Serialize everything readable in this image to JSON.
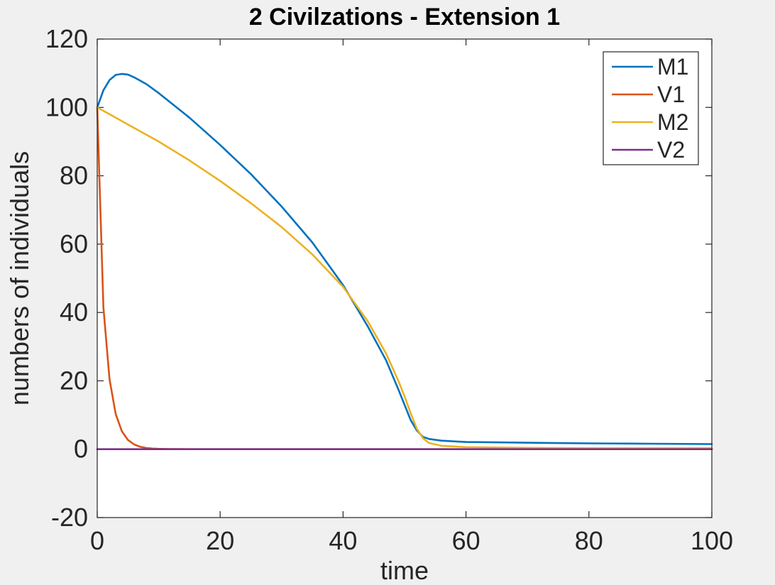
{
  "chart_data": {
    "type": "line",
    "title": "2 Civilzations - Extension 1",
    "xlabel": "time",
    "ylabel": "numbers of individuals",
    "xlim": [
      0,
      100
    ],
    "ylim": [
      -20,
      120
    ],
    "xticks": [
      0,
      20,
      40,
      60,
      80,
      100
    ],
    "yticks": [
      -20,
      0,
      20,
      40,
      60,
      80,
      100,
      120
    ],
    "grid": false,
    "legend_position": "top-right",
    "series": [
      {
        "name": "M1",
        "color": "#0072bd",
        "x": [
          0,
          1,
          2,
          3,
          4,
          5,
          6,
          8,
          10,
          15,
          20,
          25,
          30,
          35,
          40,
          44,
          47,
          49,
          50,
          51,
          52,
          53,
          54,
          56,
          60,
          70,
          80,
          90,
          100
        ],
        "y": [
          100,
          105,
          108,
          109.5,
          109.8,
          109.6,
          108.8,
          106.8,
          104.2,
          97,
          89,
          80.5,
          71,
          60.5,
          48,
          36,
          26,
          17.5,
          13,
          8.5,
          5.5,
          3.6,
          3,
          2.5,
          2.1,
          1.9,
          1.7,
          1.6,
          1.5
        ]
      },
      {
        "name": "V1",
        "color": "#d95319",
        "x": [
          0,
          1,
          2,
          3,
          4,
          5,
          6,
          7,
          8,
          9,
          10,
          12,
          15,
          20,
          30,
          50,
          100
        ],
        "y": [
          100,
          41.5,
          20.5,
          10.3,
          5.3,
          2.7,
          1.4,
          0.7,
          0.35,
          0.2,
          0.1,
          0.05,
          0,
          0,
          0,
          0,
          0
        ]
      },
      {
        "name": "M2",
        "color": "#edb120",
        "x": [
          0,
          5,
          10,
          15,
          20,
          25,
          30,
          35,
          40,
          44,
          47,
          49,
          50,
          51,
          52,
          53,
          54,
          56,
          60,
          70,
          80,
          90,
          100
        ],
        "y": [
          100,
          95,
          90,
          84.5,
          78.5,
          72,
          65,
          57,
          47.5,
          37.5,
          28,
          20,
          15.5,
          10.5,
          6,
          3.2,
          1.8,
          1.0,
          0.6,
          0.4,
          0.3,
          0.3,
          0.3
        ]
      },
      {
        "name": "V2",
        "color": "#7e2f8e",
        "x": [
          0,
          100
        ],
        "y": [
          0,
          0
        ]
      }
    ]
  }
}
